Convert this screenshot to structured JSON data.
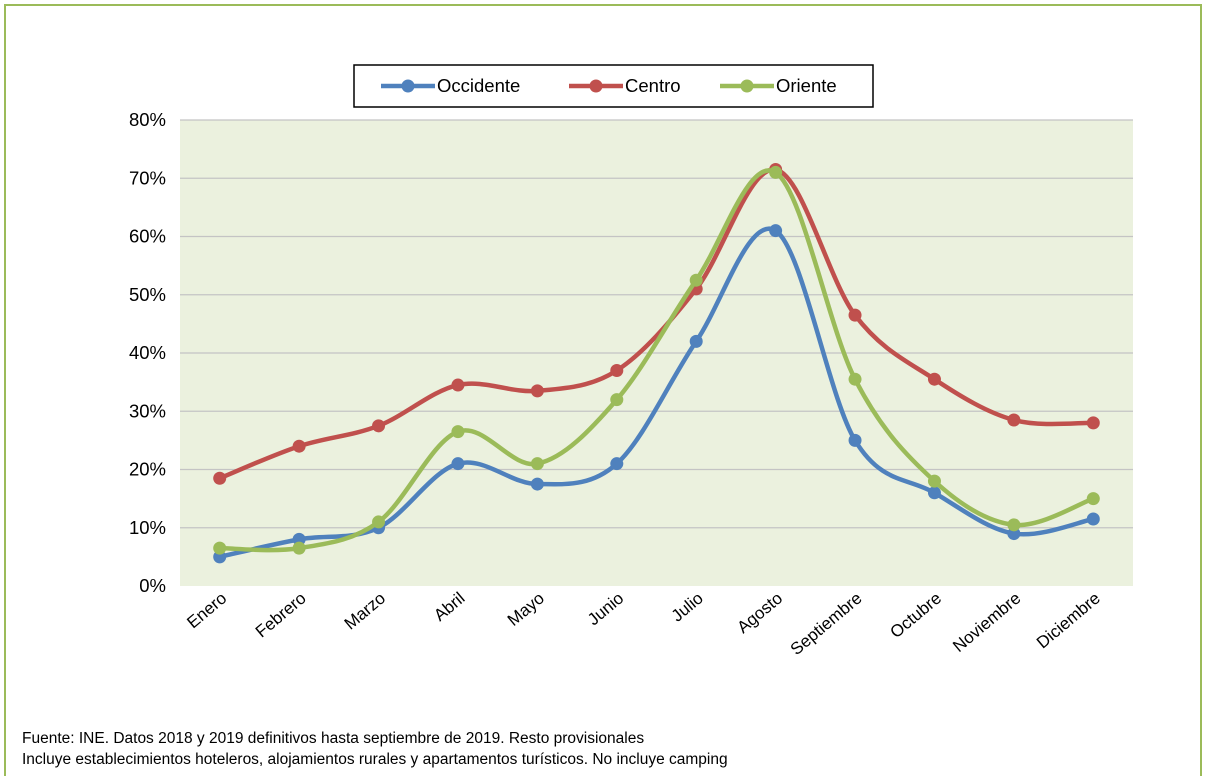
{
  "chart_data": {
    "type": "line",
    "categories": [
      "Enero",
      "Febrero",
      "Marzo",
      "Abril",
      "Mayo",
      "Junio",
      "Julio",
      "Agosto",
      "Septiembre",
      "Octubre",
      "Noviembre",
      "Diciembre"
    ],
    "series": [
      {
        "name": "Occidente",
        "color": "#4f81bd",
        "values": [
          5,
          8,
          10,
          21,
          17.5,
          21,
          42,
          61,
          25,
          16,
          9,
          11.5
        ]
      },
      {
        "name": "Centro",
        "color": "#c0504d",
        "values": [
          18.5,
          24,
          27.5,
          34.5,
          33.5,
          37,
          51,
          71.5,
          46.5,
          35.5,
          28.5,
          28
        ]
      },
      {
        "name": "Oriente",
        "color": "#9bbb59",
        "values": [
          6.5,
          6.5,
          11,
          26.5,
          21,
          32,
          52.5,
          71,
          35.5,
          18,
          10.5,
          15
        ]
      }
    ],
    "yticks": [
      "0%",
      "10%",
      "20%",
      "30%",
      "40%",
      "50%",
      "60%",
      "70%",
      "80%"
    ],
    "ylim": [
      0,
      80
    ],
    "grid": true,
    "legend": "top",
    "plot_bg": "#ebf1de"
  },
  "notes": {
    "line1": "Fuente: INE. Datos 2018 y 2019 definitivos hasta septiembre de 2019. Resto provisionales",
    "line2": "Incluye establecimientos hoteleros, alojamientos rurales y apartamentos turísticos. No incluye camping"
  }
}
